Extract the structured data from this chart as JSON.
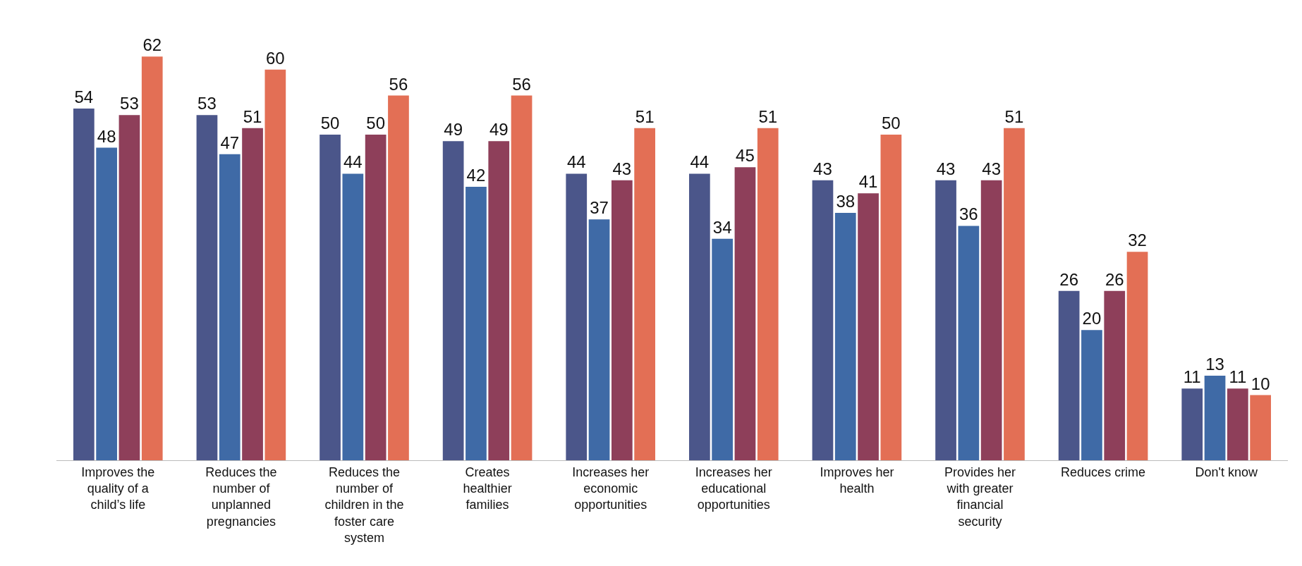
{
  "chart_data": {
    "type": "bar",
    "categories": [
      "Improves the quality of a child’s life",
      "Reduces the number of unplanned pregnancies",
      "Reduces the number of children in the foster care system",
      "Creates healthier families",
      "Increases her economic opportunities",
      "Increases her educational opportunities",
      "Improves her health",
      "Provides her with greater financial security",
      "Reduces crime",
      "Don't know"
    ],
    "series": [
      {
        "color": "#4b568a",
        "values": [
          54,
          53,
          50,
          49,
          44,
          44,
          43,
          43,
          26,
          11
        ]
      },
      {
        "color": "#3f6aa6",
        "values": [
          48,
          47,
          44,
          42,
          37,
          34,
          38,
          36,
          20,
          13
        ]
      },
      {
        "color": "#8e3f5a",
        "values": [
          53,
          51,
          50,
          49,
          43,
          45,
          41,
          43,
          26,
          11
        ]
      },
      {
        "color": "#e36f55",
        "values": [
          62,
          60,
          56,
          56,
          51,
          51,
          50,
          51,
          32,
          10
        ]
      }
    ],
    "data_labels": true,
    "legend": false
  }
}
